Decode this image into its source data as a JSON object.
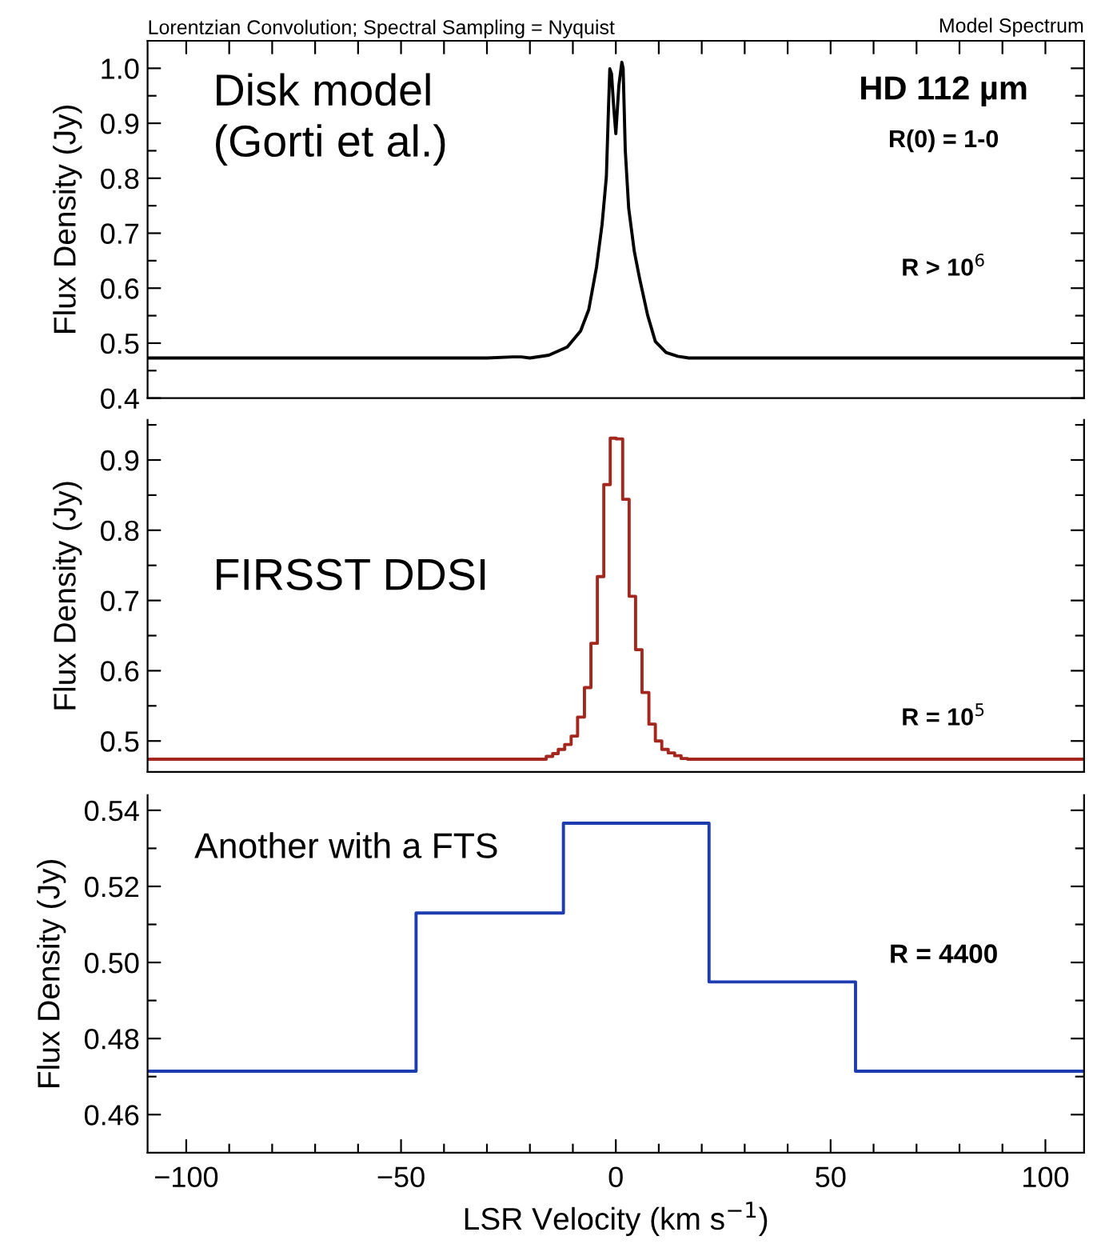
{
  "chart_data": [
    {
      "type": "line",
      "title": "Lorentzian Convolution; Spectral Sampling = Nyquist",
      "ylabel": "Flux Density (Jy)",
      "annotations": [
        "Model Spectrum",
        "Disk model\n(Gorti et al.)",
        "HD 112 µm",
        "R(0) = 1-0",
        "R > 10$^{6}$"
      ],
      "x": [
        -109,
        -30,
        -24,
        -22,
        -20,
        -15.6,
        -11.3,
        -8.2,
        -6.3,
        -4.5,
        -3.2,
        -2.2,
        -1.7,
        -1.4,
        -1.0,
        -0.5,
        0,
        0.7,
        1.4,
        1.7,
        2.2,
        3.0,
        4.3,
        5.5,
        7.4,
        9.2,
        11.7,
        14.4,
        17,
        109
      ],
      "series": [
        {
          "color": "#000000",
          "values": [
            0.473,
            0.473,
            0.475,
            0.475,
            0.473,
            0.478,
            0.493,
            0.522,
            0.561,
            0.638,
            0.716,
            0.803,
            0.929,
            0.999,
            0.99,
            0.93,
            0.881,
            0.968,
            1.011,
            1.0,
            0.851,
            0.745,
            0.667,
            0.619,
            0.551,
            0.503,
            0.483,
            0.476,
            0.473,
            0.473
          ]
        }
      ],
      "xlim": [
        -109,
        109
      ],
      "xticks": [
        {
          "value": -100,
          "label": null
        },
        {
          "value": -90,
          "label": null
        },
        {
          "value": -80,
          "label": null
        },
        {
          "value": -70,
          "label": null
        },
        {
          "value": -60,
          "label": null
        },
        {
          "value": -50,
          "label": null
        },
        {
          "value": -40,
          "label": null
        },
        {
          "value": -30,
          "label": null
        },
        {
          "value": -20,
          "label": null
        },
        {
          "value": -10,
          "label": null
        },
        {
          "value": 0,
          "label": null
        },
        {
          "value": 10,
          "label": null
        },
        {
          "value": 20,
          "label": null
        },
        {
          "value": 30,
          "label": null
        },
        {
          "value": 40,
          "label": null
        },
        {
          "value": 50,
          "label": null
        },
        {
          "value": 60,
          "label": null
        },
        {
          "value": 70,
          "label": null
        },
        {
          "value": 80,
          "label": null
        },
        {
          "value": 90,
          "label": null
        },
        {
          "value": 100,
          "label": null
        }
      ],
      "ylim": [
        0.4,
        1.05
      ],
      "yticks": [
        0.4,
        {
          "value": 0.45,
          "label": null
        },
        0.5,
        {
          "value": 0.55,
          "label": null
        },
        0.6,
        {
          "value": 0.65,
          "label": null
        },
        0.7,
        {
          "value": 0.75,
          "label": null
        },
        0.8,
        {
          "value": 0.85,
          "label": null
        },
        0.9,
        {
          "value": 0.95,
          "label": null
        },
        {
          "value": 1.0,
          "label": "1.0"
        }
      ],
      "tick_labels": "y",
      "grid": false,
      "legend": false
    },
    {
      "type": "step",
      "ylabel": "Flux Density (Jy)",
      "annotations": [
        "FIRSST DDSI",
        "R = 10$^{5}$"
      ],
      "x": [
        -109,
        -16.2,
        -14.7,
        -13.4,
        -11.9,
        -10.4,
        -8.9,
        -7.3,
        -5.8,
        -4.3,
        -2.8,
        -1.3,
        0.1,
        1.6,
        3.1,
        4.6,
        6.1,
        7.7,
        9.2,
        10.7,
        12.2,
        13.7,
        15.2,
        16.7,
        109
      ],
      "series": [
        {
          "color": "#a3271c",
          "values": [
            0.474,
            0.478,
            0.482,
            0.488,
            0.495,
            0.507,
            0.534,
            0.576,
            0.639,
            0.734,
            0.865,
            0.931,
            0.93,
            0.844,
            0.706,
            0.63,
            0.569,
            0.524,
            0.5,
            0.488,
            0.483,
            0.479,
            0.475,
            0.474,
            0.474
          ]
        }
      ],
      "xlim": [
        -109,
        109
      ],
      "ylim": [
        0.456,
        0.957
      ],
      "yticks": [
        0.5,
        {
          "value": 0.55,
          "label": null
        },
        0.6,
        {
          "value": 0.65,
          "label": null
        },
        0.7,
        {
          "value": 0.75,
          "label": null
        },
        0.8,
        {
          "value": 0.85,
          "label": null
        },
        0.9,
        {
          "value": 0.95,
          "label": null
        }
      ],
      "tick_labels": "y",
      "grid": false,
      "legend": false
    },
    {
      "type": "step",
      "xlabel": "LSR Velocity (km s$^{−1}$)",
      "ylabel": "Flux Density (Jy)",
      "annotations": [
        "Another with a FTS",
        "R = 4400"
      ],
      "x": [
        -109,
        -46.5,
        -12.2,
        21.7,
        55.8,
        109
      ],
      "series": [
        {
          "color": "#1c3cb0",
          "values": [
            0.4714,
            0.513,
            0.5366,
            0.4949,
            0.4714,
            0.4714
          ]
        }
      ],
      "xlim": [
        -109,
        109
      ],
      "xticks": [
        {
          "value": -100,
          "label": "−100"
        },
        {
          "value": -90,
          "label": null
        },
        {
          "value": -80,
          "label": null
        },
        {
          "value": -70,
          "label": null
        },
        {
          "value": -60,
          "label": null
        },
        {
          "value": -50,
          "label": "−50"
        },
        {
          "value": -40,
          "label": null
        },
        {
          "value": -30,
          "label": null
        },
        {
          "value": -20,
          "label": null
        },
        {
          "value": -10,
          "label": null
        },
        0,
        {
          "value": 10,
          "label": null
        },
        {
          "value": 20,
          "label": null
        },
        {
          "value": 30,
          "label": null
        },
        {
          "value": 40,
          "label": null
        },
        50,
        {
          "value": 60,
          "label": null
        },
        {
          "value": 70,
          "label": null
        },
        {
          "value": 80,
          "label": null
        },
        {
          "value": 90,
          "label": null
        },
        100
      ],
      "ylim": [
        0.45,
        0.544
      ],
      "yticks": [
        0.46,
        {
          "value": 0.47,
          "label": null
        },
        0.48,
        {
          "value": 0.49,
          "label": null
        },
        {
          "value": 0.5,
          "label": "0.50"
        },
        {
          "value": 0.51,
          "label": null
        },
        0.52,
        {
          "value": 0.53,
          "label": null
        },
        0.54
      ],
      "grid": false,
      "legend": false
    }
  ]
}
